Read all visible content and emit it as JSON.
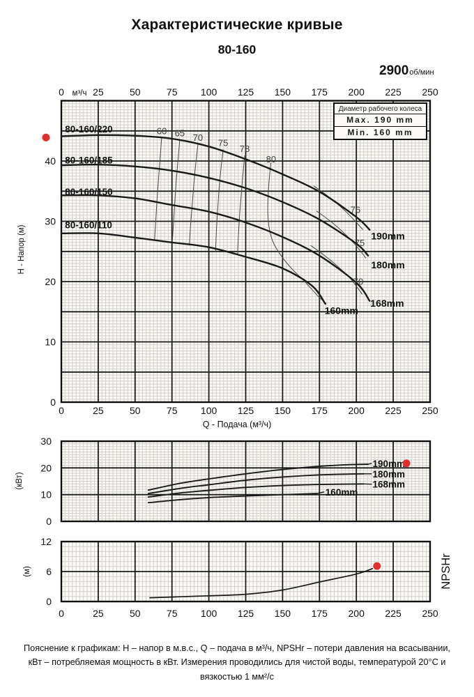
{
  "header": {
    "title": "Характеристические кривые",
    "subtitle": "80-160",
    "rpm_value": "2900",
    "rpm_unit": "об/мин"
  },
  "legend": {
    "header": "Диаметр рабочего колеса",
    "max": "Max. 190 mm",
    "min": "Min. 160 mm"
  },
  "footnote": "Пояснение к графикам: H – напор в м.в.с., Q – подача в м³/ч, NPSHr – потери давления на всасывании, кВт – потребляемая мощность в кВт. Измерения проводились для чистой воды, температурой 20°С и вязкостью 1 мм²/с",
  "colors": {
    "curve": "#1a1a1a",
    "grid_major": "#1b1b1b",
    "grid_minor": "#d3d0ca",
    "border": "#0f0f0f",
    "plot_bg": "#fbfaf7",
    "marker": "#e0302e",
    "eff_line": "#4a4a4a",
    "eff_text": "#3d3d3d",
    "text": "#111111"
  },
  "chart_data": [
    {
      "type": "line",
      "name": "head-flow",
      "x_axis": {
        "lim": [
          0,
          250
        ],
        "ticks": [
          0,
          25,
          50,
          75,
          100,
          125,
          150,
          175,
          200,
          225,
          250
        ],
        "unit_label": "м³/ч",
        "bottom_label": "Q - Подача (м³/ч)"
      },
      "y_axis": {
        "lim": [
          0,
          50
        ],
        "ticks": [
          0,
          10,
          20,
          30,
          40
        ],
        "label": "H - Напор (м)"
      },
      "series": [
        {
          "name": "190mm",
          "model": "80-160/220",
          "points": [
            [
              0,
              44.1
            ],
            [
              25,
              44.3
            ],
            [
              50,
              44.2
            ],
            [
              75,
              43.7
            ],
            [
              100,
              42.4
            ],
            [
              125,
              40.3
            ],
            [
              150,
              37.8
            ],
            [
              175,
              34.9
            ],
            [
              200,
              30.7
            ],
            [
              209,
              28.6
            ]
          ]
        },
        {
          "name": "180mm",
          "model": "80-160/185",
          "points": [
            [
              0,
              39.3
            ],
            [
              25,
              39.4
            ],
            [
              50,
              39.1
            ],
            [
              75,
              38.4
            ],
            [
              100,
              37.2
            ],
            [
              125,
              35.5
            ],
            [
              150,
              33.2
            ],
            [
              175,
              30.3
            ],
            [
              200,
              26.3
            ],
            [
              208,
              24.3
            ]
          ]
        },
        {
          "name": "168mm",
          "model": "80-160/150",
          "points": [
            [
              0,
              34.3
            ],
            [
              25,
              34.3
            ],
            [
              50,
              33.8
            ],
            [
              75,
              32.7
            ],
            [
              100,
              31.6
            ],
            [
              125,
              29.8
            ],
            [
              150,
              27.4
            ],
            [
              175,
              24.3
            ],
            [
              200,
              19.8
            ],
            [
              209,
              16.8
            ]
          ]
        },
        {
          "name": "160mm",
          "model": "80-160/110",
          "points": [
            [
              0,
              28.0
            ],
            [
              25,
              28.0
            ],
            [
              50,
              27.3
            ],
            [
              75,
              26.5
            ],
            [
              100,
              25.7
            ],
            [
              125,
              24.1
            ],
            [
              150,
              22.2
            ],
            [
              170,
              19.3
            ],
            [
              179,
              16.3
            ]
          ]
        }
      ],
      "model_labels": [
        {
          "text": "80-160/220",
          "q": 2.5,
          "v": 45.3
        },
        {
          "text": "80-160/185",
          "q": 2.5,
          "v": 40.2
        },
        {
          "text": "80-160/150",
          "q": 2.5,
          "v": 34.9
        },
        {
          "text": "80-160/110",
          "q": 2.5,
          "v": 29.4
        }
      ],
      "diameter_labels": [
        {
          "text": "190mm",
          "q": 210,
          "v": 27.6
        },
        {
          "text": "180mm",
          "q": 210,
          "v": 22.8
        },
        {
          "text": "168mm",
          "q": 209.5,
          "v": 16.4
        },
        {
          "text": "160mm",
          "q": 178.5,
          "v": 15.2
        }
      ],
      "efficiency_labels": [
        {
          "text": "60",
          "q": 68.1,
          "v": 45.0
        },
        {
          "text": "65",
          "q": 80.3,
          "v": 44.6
        },
        {
          "text": "70",
          "q": 92.6,
          "v": 43.9
        },
        {
          "text": "75",
          "q": 109.7,
          "v": 43.0
        },
        {
          "text": "78",
          "q": 124.3,
          "v": 42.0
        },
        {
          "text": "80",
          "q": 142.2,
          "v": 40.3
        },
        {
          "text": "76",
          "q": 199.4,
          "v": 31.9
        },
        {
          "text": "75",
          "q": 202.3,
          "v": 26.4
        },
        {
          "text": "70",
          "q": 201.3,
          "v": 20.0
        }
      ],
      "efficiency_lines": [
        {
          "label": "60",
          "points": [
            [
              68,
              43.9
            ],
            [
              66.5,
              39
            ],
            [
              65,
              34
            ],
            [
              64,
              30
            ],
            [
              63.2,
              26.9
            ]
          ]
        },
        {
          "label": "65",
          "points": [
            [
              80.3,
              43.5
            ],
            [
              78.5,
              38.5
            ],
            [
              77,
              33.5
            ],
            [
              76,
              29.5
            ],
            [
              75.2,
              26.5
            ]
          ]
        },
        {
          "label": "70",
          "points": [
            [
              92.6,
              42.8
            ],
            [
              90.5,
              38
            ],
            [
              88.8,
              33
            ],
            [
              87.5,
              29
            ],
            [
              86.8,
              26.0
            ]
          ]
        },
        {
          "label": "75",
          "points": [
            [
              109.7,
              41.9
            ],
            [
              107.5,
              37
            ],
            [
              106,
              32
            ],
            [
              105,
              27.8
            ],
            [
              104.5,
              24.9
            ]
          ]
        },
        {
          "label": "78",
          "points": [
            [
              124.3,
              40.9
            ],
            [
              122.5,
              36
            ],
            [
              121,
              31.5
            ],
            [
              120,
              27.5
            ],
            [
              119.5,
              24.6
            ]
          ]
        },
        {
          "label": "80",
          "points": [
            [
              142,
              39.7
            ],
            [
              140.5,
              35.5
            ],
            [
              140,
              31.5
            ],
            [
              141.2,
              28.5
            ],
            [
              144,
              26.3
            ],
            [
              149,
              24.3
            ],
            [
              156,
              22.2
            ],
            [
              165,
              20.0
            ],
            [
              174,
              17.6
            ],
            [
              179.5,
              16.4
            ]
          ]
        },
        {
          "label": "76",
          "points": [
            [
              171,
              35.9
            ],
            [
              180,
              34.3
            ],
            [
              189,
              32.5
            ],
            [
              197,
              30.6
            ],
            [
              204.5,
              28.6
            ]
          ]
        },
        {
          "label": "75",
          "points": [
            [
              173,
              31.7
            ],
            [
              182,
              30.1
            ],
            [
              191,
              28.2
            ],
            [
              199,
              26.2
            ],
            [
              206.5,
              23.9
            ]
          ]
        },
        {
          "label": "70",
          "points": [
            [
              169,
              26.0
            ],
            [
              178,
              24.4
            ],
            [
              187,
              22.6
            ],
            [
              196,
              20.5
            ],
            [
              204,
              17.9
            ]
          ]
        }
      ],
      "marker": {
        "q": -10.4,
        "v": 43.9
      }
    },
    {
      "type": "line",
      "name": "power",
      "y_axis": {
        "lim": [
          0,
          30
        ],
        "ticks": [
          0,
          10,
          20,
          30
        ],
        "label": "(кВт)"
      },
      "series": [
        {
          "name": "190mm",
          "points": [
            [
              59,
              11.7
            ],
            [
              80,
              14.2
            ],
            [
              100,
              15.9
            ],
            [
              125,
              17.8
            ],
            [
              150,
              19.4
            ],
            [
              175,
              20.6
            ],
            [
              195,
              21.2
            ],
            [
              208,
              21.4
            ]
          ]
        },
        {
          "name": "180mm",
          "points": [
            [
              59,
              10.4
            ],
            [
              80,
              12.3
            ],
            [
              100,
              13.7
            ],
            [
              125,
              15.4
            ],
            [
              150,
              16.6
            ],
            [
              175,
              17.4
            ],
            [
              195,
              17.7
            ],
            [
              205,
              17.8
            ]
          ]
        },
        {
          "name": "168mm",
          "points": [
            [
              59,
              9.1
            ],
            [
              80,
              10.6
            ],
            [
              100,
              11.6
            ],
            [
              125,
              12.7
            ],
            [
              150,
              13.4
            ],
            [
              175,
              13.8
            ],
            [
              205,
              14.0
            ]
          ]
        },
        {
          "name": "160mm",
          "points": [
            [
              59,
              7.0
            ],
            [
              80,
              8.1
            ],
            [
              100,
              8.9
            ],
            [
              125,
              9.5
            ],
            [
              150,
              10.0
            ],
            [
              173,
              10.4
            ]
          ]
        }
      ],
      "diameter_labels": [
        {
          "text": "190mm",
          "q": 211,
          "v": 21.7
        },
        {
          "text": "180mm",
          "q": 211,
          "v": 17.8
        },
        {
          "text": "168mm",
          "q": 211,
          "v": 13.9
        },
        {
          "text": "160mm",
          "q": 179,
          "v": 11.0
        }
      ],
      "leaders": [
        {
          "from": [
            208,
            21.4
          ],
          "to": [
            210.5,
            21.7
          ]
        },
        {
          "from": [
            205,
            17.8
          ],
          "to": [
            210.5,
            17.8
          ]
        },
        {
          "from": [
            205,
            14.0
          ],
          "to": [
            210.5,
            13.9
          ]
        },
        {
          "from": [
            173,
            10.4
          ],
          "to": [
            178.2,
            11.0
          ]
        }
      ],
      "marker": {
        "q": 234,
        "v": 21.7
      }
    },
    {
      "type": "line",
      "name": "npshr",
      "x_axis": {
        "ticks": [
          0,
          25,
          50,
          75,
          100,
          125,
          150,
          175,
          200,
          225,
          250
        ]
      },
      "y_axis": {
        "lim": [
          0,
          12
        ],
        "ticks": [
          0,
          6,
          12
        ],
        "label": "(м)"
      },
      "right_label": "NPSHr",
      "series": [
        {
          "name": "NPSHr",
          "points": [
            [
              60,
              0.75
            ],
            [
              80,
              0.95
            ],
            [
              100,
              1.15
            ],
            [
              125,
              1.45
            ],
            [
              150,
              2.3
            ],
            [
              175,
              3.9
            ],
            [
              200,
              5.5
            ],
            [
              211,
              6.6
            ]
          ]
        }
      ],
      "marker": {
        "q": 214,
        "v": 7.1
      }
    }
  ]
}
